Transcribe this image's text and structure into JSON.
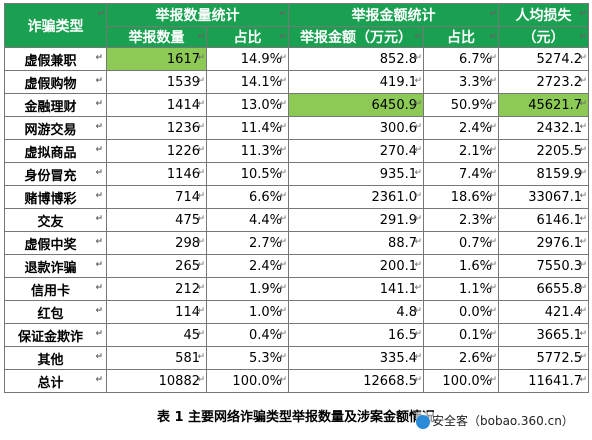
{
  "headers": {
    "category": "诈骗类型",
    "report_count_group": "举报数量统计",
    "amount_group": "举报金额统计",
    "per_capita_group": "人均损失",
    "report_count": "举报数量",
    "share1": "占比",
    "amount": "举报金额（万元）",
    "share2": "占比",
    "per_capita_unit": "（元）"
  },
  "rows": [
    {
      "category": "虚假兼职",
      "count": "1617",
      "count_share": "14.9%",
      "amount": "852.8",
      "amount_share": "6.7%",
      "per_capita": "5274.2"
    },
    {
      "category": "虚假购物",
      "count": "1539",
      "count_share": "14.1%",
      "amount": "419.1",
      "amount_share": "3.3%",
      "per_capita": "2723.2"
    },
    {
      "category": "金融理财",
      "count": "1414",
      "count_share": "13.0%",
      "amount": "6450.9",
      "amount_share": "50.9%",
      "per_capita": "45621.7"
    },
    {
      "category": "网游交易",
      "count": "1236",
      "count_share": "11.4%",
      "amount": "300.6",
      "amount_share": "2.4%",
      "per_capita": "2432.1"
    },
    {
      "category": "虚拟商品",
      "count": "1226",
      "count_share": "11.3%",
      "amount": "270.4",
      "amount_share": "2.1%",
      "per_capita": "2205.5"
    },
    {
      "category": "身份冒充",
      "count": "1146",
      "count_share": "10.5%",
      "amount": "935.1",
      "amount_share": "7.4%",
      "per_capita": "8159.9"
    },
    {
      "category": "赌博博彩",
      "count": "714",
      "count_share": "6.6%",
      "amount": "2361.0",
      "amount_share": "18.6%",
      "per_capita": "33067.1"
    },
    {
      "category": "交友",
      "count": "475",
      "count_share": "4.4%",
      "amount": "291.9",
      "amount_share": "2.3%",
      "per_capita": "6146.1"
    },
    {
      "category": "虚假中奖",
      "count": "298",
      "count_share": "2.7%",
      "amount": "88.7",
      "amount_share": "0.7%",
      "per_capita": "2976.1"
    },
    {
      "category": "退款诈骗",
      "count": "265",
      "count_share": "2.4%",
      "amount": "200.1",
      "amount_share": "1.6%",
      "per_capita": "7550.3"
    },
    {
      "category": "信用卡",
      "count": "212",
      "count_share": "1.9%",
      "amount": "141.1",
      "amount_share": "1.1%",
      "per_capita": "6655.8"
    },
    {
      "category": "红包",
      "count": "114",
      "count_share": "1.0%",
      "amount": "4.8",
      "amount_share": "0.0%",
      "per_capita": "421.4"
    },
    {
      "category": "保证金欺诈",
      "count": "45",
      "count_share": "0.4%",
      "amount": "16.5",
      "amount_share": "0.1%",
      "per_capita": "3665.1"
    },
    {
      "category": "其他",
      "count": "581",
      "count_share": "5.3%",
      "amount": "335.4",
      "amount_share": "2.6%",
      "per_capita": "5772.5"
    }
  ],
  "total": {
    "category": "总计",
    "count": "10882",
    "count_share": "100.0%",
    "amount": "12668.5",
    "amount_share": "100.0%",
    "per_capita": "11641.7"
  },
  "caption": "表 1  主要网络诈骗类型举报数量及涉案金额情况",
  "watermark": "安全客（bobao.360.cn）",
  "paragraph_mark": "↵",
  "colors": {
    "header_bg": "#19a051",
    "highlight": "#8cc955"
  }
}
